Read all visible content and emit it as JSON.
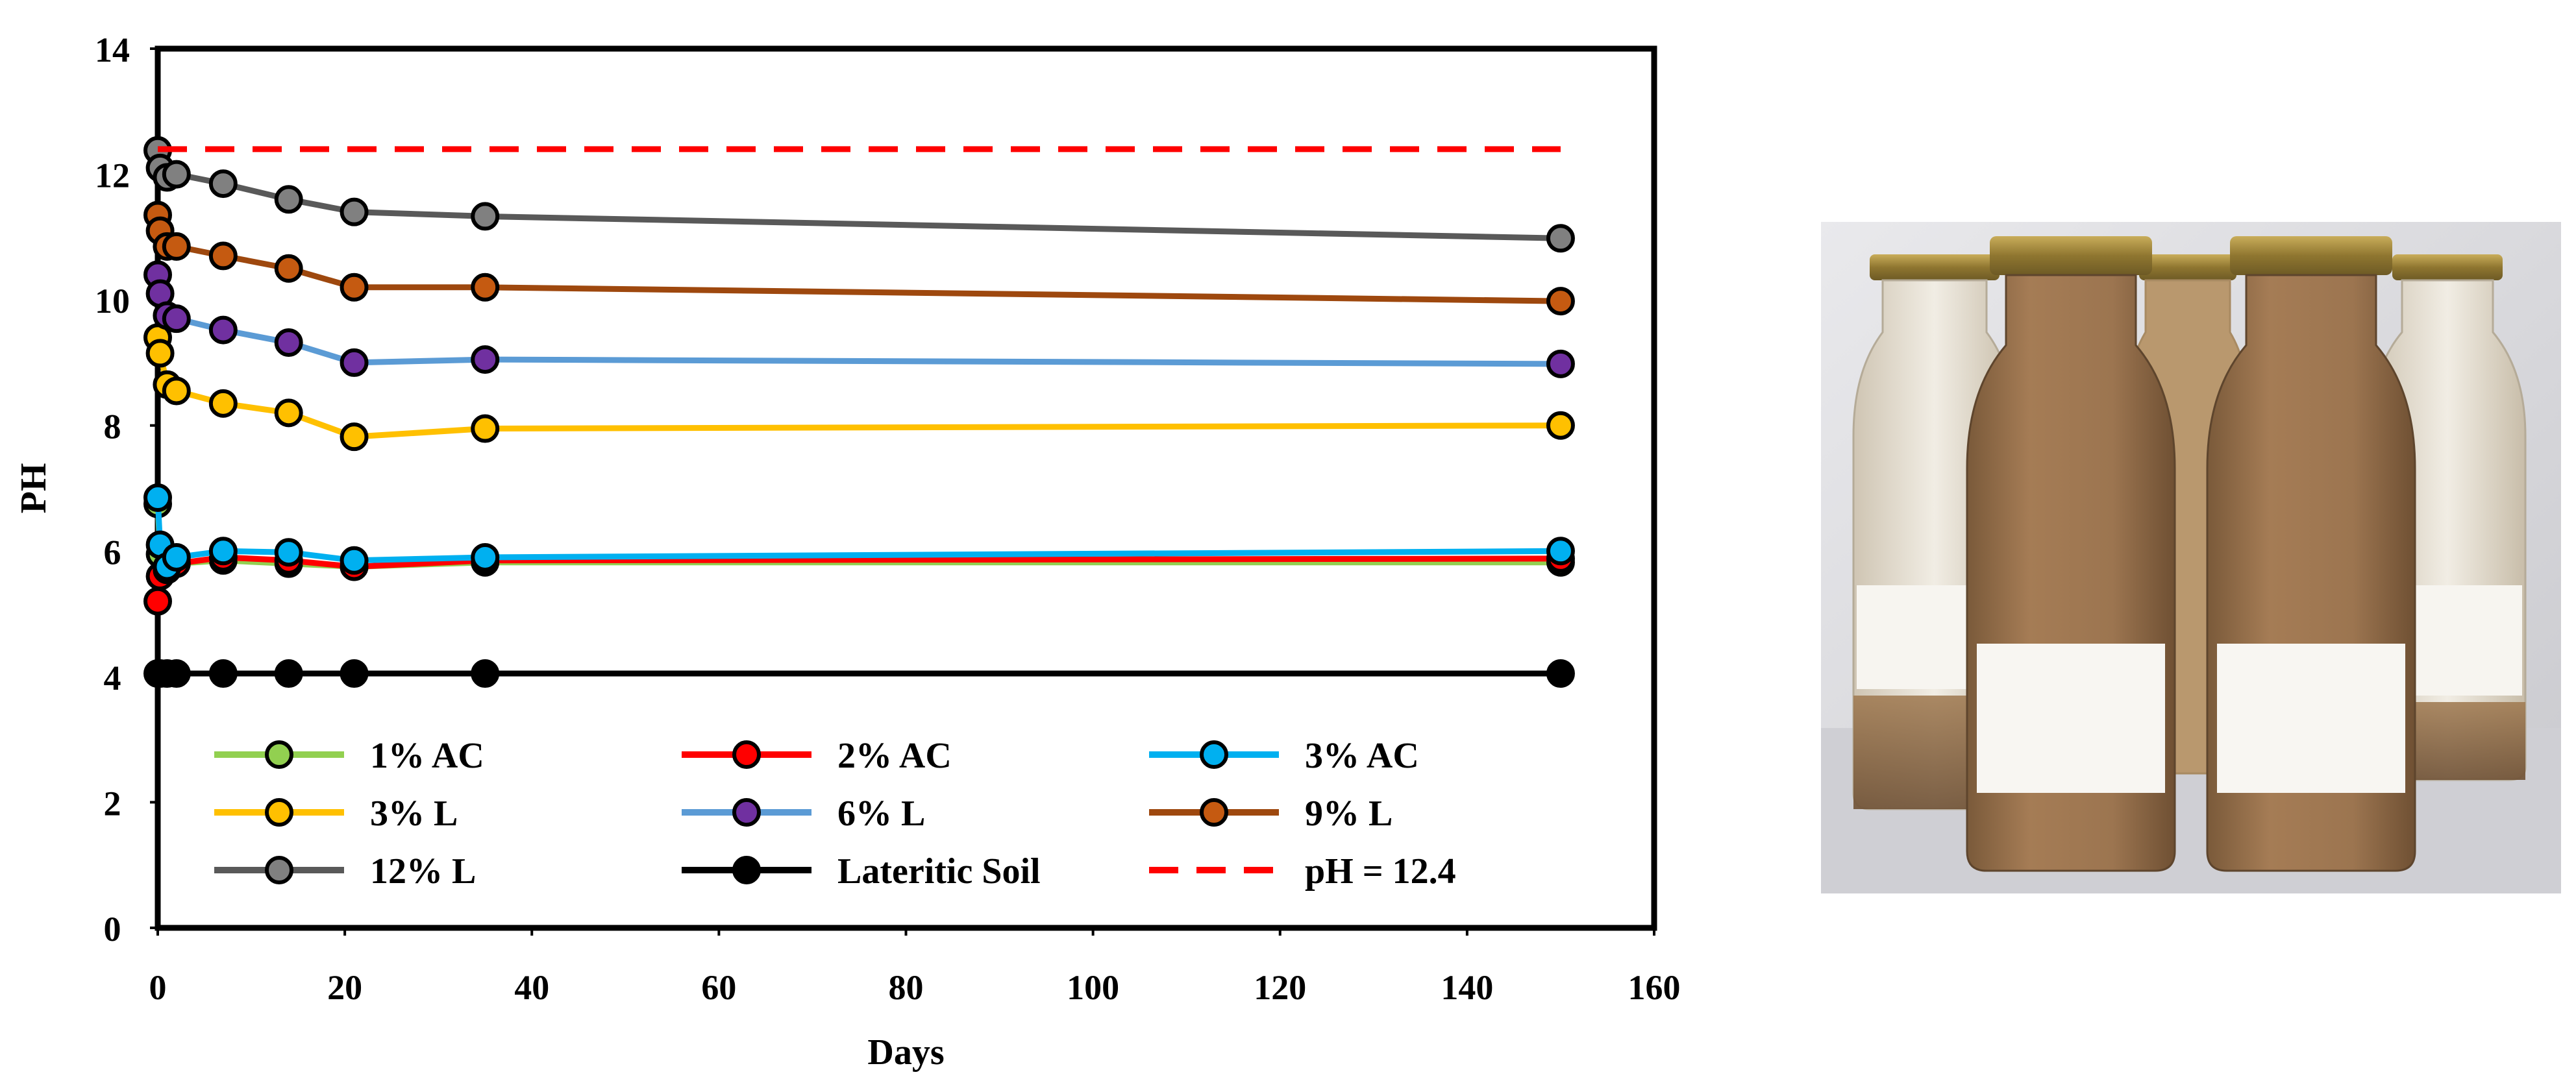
{
  "chart_data": {
    "type": "line",
    "title": "",
    "xlabel": "Days",
    "ylabel": "PH",
    "xlim": [
      0,
      160
    ],
    "ylim": [
      0,
      14
    ],
    "xticks": [
      0,
      20,
      40,
      60,
      80,
      100,
      120,
      140,
      160
    ],
    "yticks": [
      0,
      2,
      4,
      6,
      8,
      10,
      12,
      14
    ],
    "grid": false,
    "legend_position": "bottom",
    "series": [
      {
        "name": "1% AC",
        "color": "#92D050",
        "x": [
          0,
          0.25,
          1,
          2,
          7,
          14,
          21,
          35,
          150
        ],
        "y": [
          6.75,
          5.95,
          5.7,
          5.8,
          5.85,
          5.8,
          5.75,
          5.82,
          5.82
        ]
      },
      {
        "name": "2% AC",
        "color": "#FF0000",
        "x": [
          0,
          0.25,
          1,
          2,
          7,
          14,
          21,
          35,
          150
        ],
        "y": [
          5.2,
          5.6,
          5.7,
          5.8,
          5.9,
          5.85,
          5.75,
          5.85,
          5.88
        ]
      },
      {
        "name": "3% AC",
        "color": "#00B0F0",
        "x": [
          0,
          0.25,
          1,
          2,
          7,
          14,
          21,
          35,
          150
        ],
        "y": [
          6.85,
          6.1,
          5.75,
          5.9,
          6.0,
          5.98,
          5.85,
          5.9,
          6.0
        ]
      },
      {
        "name": "3% L",
        "color": "#FFC000",
        "x": [
          0,
          0.25,
          1,
          2,
          7,
          14,
          21,
          35,
          150
        ],
        "y": [
          9.4,
          9.15,
          8.65,
          8.55,
          8.35,
          8.2,
          7.82,
          7.95,
          8.0
        ]
      },
      {
        "name": "6% L",
        "color": "#5B9BD5",
        "marker": "#7030A0",
        "x": [
          0,
          0.25,
          1,
          2,
          7,
          14,
          21,
          35,
          150
        ],
        "y": [
          10.4,
          10.1,
          9.75,
          9.7,
          9.52,
          9.32,
          9.0,
          9.05,
          8.98
        ]
      },
      {
        "name": "9% L",
        "color": "#9E480E",
        "marker": "#C55A11",
        "x": [
          0,
          0.25,
          1,
          2,
          7,
          14,
          21,
          35,
          150
        ],
        "y": [
          11.35,
          11.1,
          10.85,
          10.85,
          10.7,
          10.5,
          10.2,
          10.2,
          9.98
        ]
      },
      {
        "name": "12% L",
        "color": "#595959",
        "marker": "#808080",
        "x": [
          0,
          0.25,
          1,
          2,
          7,
          14,
          21,
          35,
          150
        ],
        "y": [
          12.38,
          12.1,
          11.95,
          12.0,
          11.85,
          11.6,
          11.4,
          11.33,
          10.98
        ]
      },
      {
        "name": "Lateritic Soil",
        "color": "#000000",
        "marker": "#000000",
        "x": [
          0,
          0.25,
          1,
          2,
          7,
          14,
          21,
          35,
          150
        ],
        "y": [
          4.05,
          4.05,
          4.05,
          4.05,
          4.05,
          4.05,
          4.05,
          4.05,
          4.05
        ]
      },
      {
        "name": "pH = 12.4",
        "color": "#FF0000",
        "dashed": true,
        "x": [
          0,
          150
        ],
        "y": [
          12.4,
          12.4
        ]
      }
    ]
  }
}
